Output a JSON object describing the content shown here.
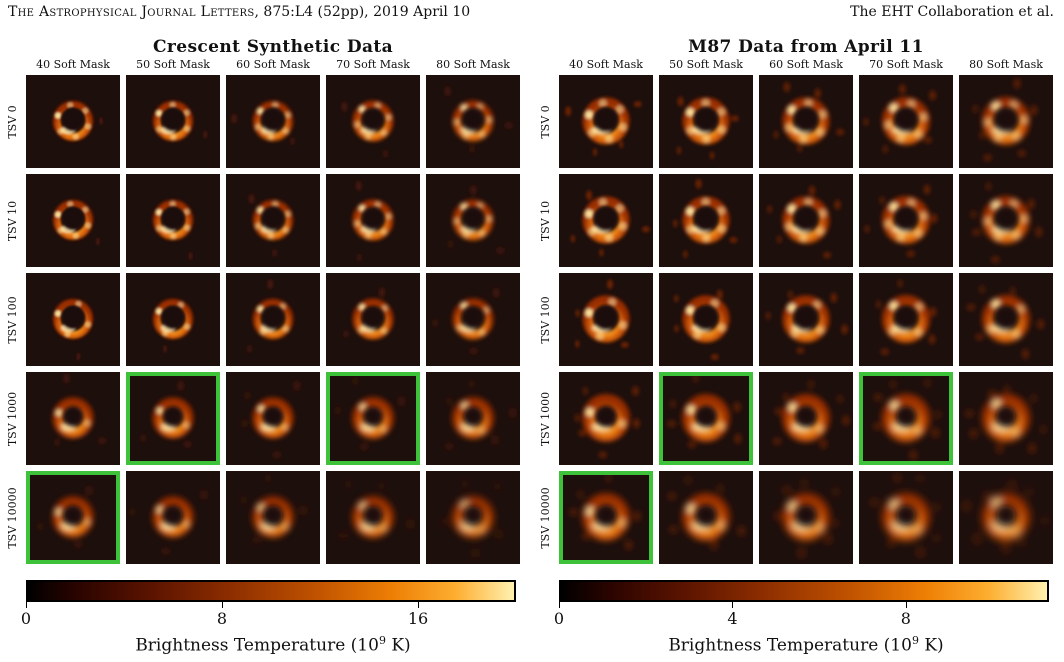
{
  "header": {
    "journal": "The Astrophysical Journal Letters",
    "citation": ", 875:L4 (52pp), 2019 April 10",
    "authors": "The EHT Collaboration et al."
  },
  "panels": [
    {
      "title": "Crescent Synthetic Data",
      "columns": [
        "40 Soft Mask",
        "50 Soft Mask",
        "60 Soft Mask",
        "70 Soft Mask",
        "80 Soft Mask"
      ],
      "rows": [
        "TSV 0",
        "TSV 10",
        "TSV 100",
        "TSV 1000",
        "TSV 10000"
      ],
      "selected": [
        [
          3,
          1
        ],
        [
          3,
          3
        ],
        [
          4,
          0
        ]
      ],
      "colorbar": {
        "ticks": [
          0,
          8,
          16
        ],
        "max": 20,
        "label": "Brightness Temperature (10",
        "exp": "9",
        "unit": " K)"
      }
    },
    {
      "title": "M87 Data from April 11",
      "columns": [
        "40 Soft Mask",
        "50 Soft Mask",
        "60 Soft Mask",
        "70 Soft Mask",
        "80 Soft Mask"
      ],
      "rows": [
        "TSV 0",
        "TSV 10",
        "TSV 100",
        "TSV 1000",
        "TSV 10000"
      ],
      "selected": [
        [
          3,
          1
        ],
        [
          3,
          3
        ],
        [
          4,
          0
        ]
      ],
      "colorbar": {
        "ticks": [
          0,
          4,
          8
        ],
        "max": 11.3,
        "label": "Brightness Temperature (10",
        "exp": "9",
        "unit": " K)"
      }
    }
  ]
}
